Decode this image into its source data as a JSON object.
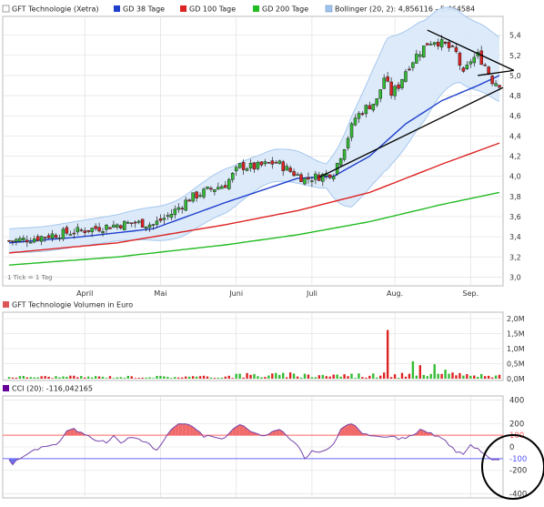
{
  "chart_data": [
    {
      "type": "candlestick",
      "panel": "price",
      "legend": [
        {
          "label": "GFT Technologie (Xetra)",
          "color": "#ffffff"
        },
        {
          "label": "GD 38 Tage",
          "color": "#1f3fcc"
        },
        {
          "label": "GD 100 Tage",
          "color": "#dd2222"
        },
        {
          "label": "GD 200 Tage",
          "color": "#22bb22"
        },
        {
          "label": "Bollinger (20, 2): 4,856116 - 5,464584",
          "color": "#9fc4ec"
        }
      ],
      "note": "1 Tick = 1 Tag",
      "months": [
        {
          "label": "April",
          "day": 21
        },
        {
          "label": "Mai",
          "day": 42
        },
        {
          "label": "Juni",
          "day": 63
        },
        {
          "label": "Juli",
          "day": 84
        },
        {
          "label": "Aug.",
          "day": 107
        },
        {
          "label": "Sep.",
          "day": 128
        }
      ],
      "y_ticks": [
        "3,0",
        "3,2",
        "3,4",
        "3,6",
        "3,8",
        "4,0",
        "4,2",
        "4,4",
        "4,6",
        "4,8",
        "5,0",
        "5,2",
        "5,4"
      ],
      "ylim": [
        2.95,
        5.55
      ],
      "days": 137,
      "close_keyframes": [
        [
          0,
          3.36
        ],
        [
          6,
          3.38
        ],
        [
          12,
          3.42
        ],
        [
          20,
          3.46
        ],
        [
          25,
          3.49
        ],
        [
          30,
          3.52
        ],
        [
          35,
          3.54
        ],
        [
          40,
          3.52
        ],
        [
          45,
          3.63
        ],
        [
          50,
          3.78
        ],
        [
          55,
          3.86
        ],
        [
          60,
          3.92
        ],
        [
          64,
          4.1
        ],
        [
          68,
          4.09
        ],
        [
          74,
          4.14
        ],
        [
          78,
          4.05
        ],
        [
          82,
          3.97
        ],
        [
          86,
          4.0
        ],
        [
          90,
          4.04
        ],
        [
          93,
          4.3
        ],
        [
          96,
          4.58
        ],
        [
          99,
          4.68
        ],
        [
          102,
          4.75
        ],
        [
          104,
          4.98
        ],
        [
          106,
          4.82
        ],
        [
          108,
          4.9
        ],
        [
          110,
          5.05
        ],
        [
          113,
          5.2
        ],
        [
          116,
          5.32
        ],
        [
          118,
          5.35
        ],
        [
          121,
          5.3
        ],
        [
          124,
          5.22
        ],
        [
          126,
          5.0
        ],
        [
          128,
          5.15
        ],
        [
          130,
          5.2
        ],
        [
          132,
          5.1
        ],
        [
          134,
          4.95
        ],
        [
          136,
          4.92
        ]
      ],
      "ma38_keyframes": [
        [
          0,
          3.34
        ],
        [
          20,
          3.4
        ],
        [
          40,
          3.48
        ],
        [
          60,
          3.74
        ],
        [
          80,
          3.98
        ],
        [
          90,
          4.0
        ],
        [
          100,
          4.2
        ],
        [
          110,
          4.52
        ],
        [
          120,
          4.75
        ],
        [
          130,
          4.9
        ],
        [
          136,
          5.0
        ]
      ],
      "ma100_keyframes": [
        [
          0,
          3.24
        ],
        [
          30,
          3.34
        ],
        [
          60,
          3.52
        ],
        [
          80,
          3.66
        ],
        [
          100,
          3.84
        ],
        [
          120,
          4.12
        ],
        [
          136,
          4.33
        ]
      ],
      "ma200_keyframes": [
        [
          0,
          3.12
        ],
        [
          30,
          3.2
        ],
        [
          60,
          3.32
        ],
        [
          80,
          3.42
        ],
        [
          100,
          3.55
        ],
        [
          120,
          3.72
        ],
        [
          136,
          3.84
        ]
      ],
      "bollinger_width_keyframes": [
        [
          0,
          0.12
        ],
        [
          30,
          0.13
        ],
        [
          50,
          0.2
        ],
        [
          60,
          0.22
        ],
        [
          70,
          0.16
        ],
        [
          80,
          0.16
        ],
        [
          88,
          0.12
        ],
        [
          95,
          0.45
        ],
        [
          105,
          0.65
        ],
        [
          115,
          0.5
        ],
        [
          125,
          0.35
        ],
        [
          136,
          0.32
        ]
      ],
      "trendlines": [
        {
          "from": [
            86,
            3.99
          ],
          "to": [
            137,
            4.88
          ]
        },
        {
          "from": [
            116,
            5.45
          ],
          "to": [
            140,
            5.05
          ]
        },
        {
          "from": [
            130,
            5.0
          ],
          "to": [
            140,
            5.05
          ]
        }
      ]
    },
    {
      "type": "bar",
      "panel": "volume",
      "legend": [
        {
          "label": "GFT Technologie Volumen in Euro",
          "color": "#dd5555"
        }
      ],
      "y_ticks": [
        "0,0M",
        "0,5M",
        "1,0M",
        "1,5M",
        "2,0M"
      ],
      "ylim": [
        0,
        2.0
      ],
      "spikes": [
        [
          105,
          1.62
        ],
        [
          112,
          0.58
        ],
        [
          114,
          0.45
        ],
        [
          118,
          0.48
        ],
        [
          121,
          0.3
        ]
      ],
      "base_level": 0.12
    },
    {
      "type": "line",
      "panel": "cci",
      "legend": [
        {
          "label": "CCI (20): -116,042165",
          "color": "#660099"
        }
      ],
      "y_ticks": [
        {
          "label": "400",
          "value": 400
        },
        {
          "label": "200",
          "value": 200
        },
        {
          "label": "100",
          "value": 100
        },
        {
          "label": "0",
          "value": 0
        },
        {
          "label": "-100",
          "value": -100
        },
        {
          "label": "-200",
          "value": -200
        },
        {
          "label": "-400",
          "value": -400
        }
      ],
      "ylim": [
        -420,
        420
      ],
      "bands": [
        100,
        -100
      ],
      "value_keyframes": [
        [
          0,
          -105
        ],
        [
          1,
          -145
        ],
        [
          2,
          -120
        ],
        [
          4,
          -80
        ],
        [
          7,
          -30
        ],
        [
          10,
          10
        ],
        [
          13,
          20
        ],
        [
          15,
          80
        ],
        [
          16,
          140
        ],
        [
          18,
          150
        ],
        [
          20,
          120
        ],
        [
          22,
          100
        ],
        [
          24,
          60
        ],
        [
          27,
          40
        ],
        [
          29,
          90
        ],
        [
          31,
          40
        ],
        [
          33,
          70
        ],
        [
          35,
          80
        ],
        [
          38,
          40
        ],
        [
          41,
          -30
        ],
        [
          43,
          60
        ],
        [
          45,
          150
        ],
        [
          47,
          200
        ],
        [
          49,
          195
        ],
        [
          52,
          150
        ],
        [
          54,
          90
        ],
        [
          56,
          95
        ],
        [
          58,
          70
        ],
        [
          60,
          80
        ],
        [
          62,
          150
        ],
        [
          64,
          190
        ],
        [
          66,
          160
        ],
        [
          68,
          120
        ],
        [
          70,
          95
        ],
        [
          72,
          110
        ],
        [
          74,
          150
        ],
        [
          76,
          130
        ],
        [
          78,
          60
        ],
        [
          80,
          20
        ],
        [
          82,
          -100
        ],
        [
          84,
          -40
        ],
        [
          86,
          -40
        ],
        [
          88,
          -30
        ],
        [
          90,
          20
        ],
        [
          92,
          150
        ],
        [
          94,
          200
        ],
        [
          96,
          180
        ],
        [
          98,
          110
        ],
        [
          100,
          100
        ],
        [
          102,
          90
        ],
        [
          104,
          80
        ],
        [
          106,
          100
        ],
        [
          108,
          70
        ],
        [
          110,
          80
        ],
        [
          112,
          100
        ],
        [
          114,
          150
        ],
        [
          116,
          130
        ],
        [
          118,
          100
        ],
        [
          120,
          80
        ],
        [
          122,
          20
        ],
        [
          124,
          -40
        ],
        [
          126,
          -60
        ],
        [
          128,
          20
        ],
        [
          130,
          -20
        ],
        [
          132,
          -60
        ],
        [
          134,
          -110
        ],
        [
          136,
          -116
        ]
      ]
    }
  ],
  "colors": {
    "up_candle": "#33bb33",
    "down_candle": "#dd2222",
    "bollinger_fill": "#d8e8fa",
    "bollinger_line": "#9fc4ec",
    "cci_line": "#7744aa",
    "cci_fill_pos": "#f06a6a",
    "cci_fill_neg": "#6a70f0",
    "band_upper": "#ff6666",
    "band_lower": "#6666ff"
  }
}
